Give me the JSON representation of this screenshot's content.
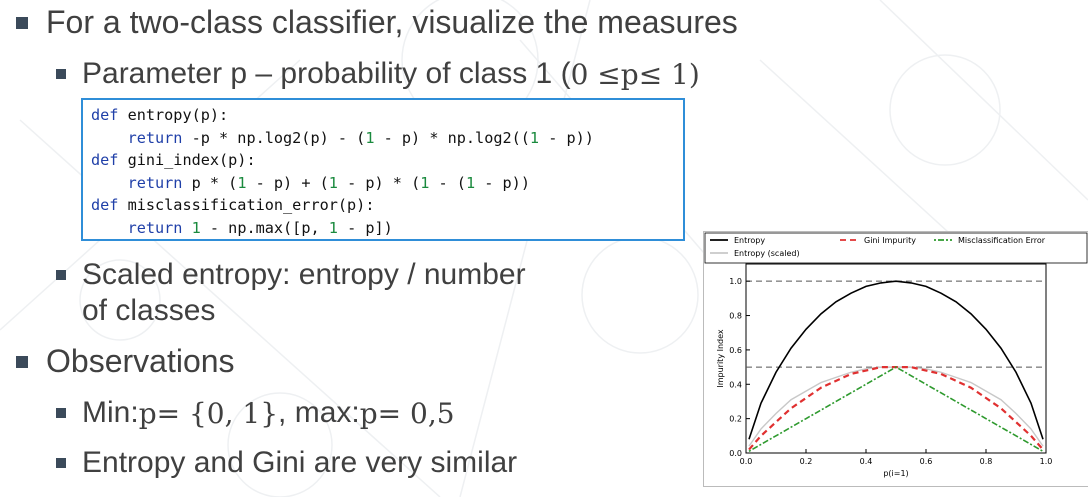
{
  "slide": {
    "bullet1": "For a two-class classifier, visualize the measures",
    "bullet1_sub1_prefix": "Parameter p – probability of class 1 (",
    "bullet1_sub1_math_a": "0 ≤ ",
    "bullet1_sub1_math_p": "p",
    "bullet1_sub1_math_b": " ≤ 1)",
    "bullet1_sub2_line1": "Scaled entropy: entropy / number",
    "bullet1_sub2_line2": "of classes",
    "bullet2": "Observations",
    "bullet2_sub1_min": "Min: ",
    "bullet2_sub1_p1": "p",
    "bullet2_sub1_eq1": " = {0, 1}",
    "bullet2_sub1_mid": ", max: ",
    "bullet2_sub1_p2": "p",
    "bullet2_sub1_eq2": " = 0,5",
    "bullet2_sub2": "Entropy and Gini are very similar"
  },
  "code": {
    "l1_kw": "def",
    "l1_rest": " entropy(p):",
    "l2_kw": "    return",
    "l2_a": " -p * np.log2(p) - (",
    "l2_n1": "1",
    "l2_b": " - p) * np.log2((",
    "l2_n2": "1",
    "l2_c": " - p))",
    "l3_kw": "def",
    "l3_rest": " gini_index(p):",
    "l4_kw": "    return",
    "l4_a": " p * (",
    "l4_n1": "1",
    "l4_b": " - p) + (",
    "l4_n2": "1",
    "l4_c": " - p) * (",
    "l4_n3": "1",
    "l4_d": " - (",
    "l4_n4": "1",
    "l4_e": " - p))",
    "l5_kw": "def",
    "l5_rest": " misclassification_error(p):",
    "l6_kw": "    return",
    "l6_sp": " ",
    "l6_n1": "1",
    "l6_a": " - np.max([p, ",
    "l6_n2": "1",
    "l6_b": " - p])"
  },
  "chart_data": {
    "type": "line",
    "xlabel": "p(i=1)",
    "ylabel": "Impurity Index",
    "xlim": [
      0.0,
      1.0
    ],
    "ylim": [
      0.0,
      1.1
    ],
    "xticks": [
      "0.0",
      "0.2",
      "0.4",
      "0.6",
      "0.8",
      "1.0"
    ],
    "yticks": [
      "0.0",
      "0.2",
      "0.4",
      "0.6",
      "0.8",
      "1.0"
    ],
    "legend_position": "top",
    "hlines": [
      0.5,
      1.0
    ],
    "x": [
      0.01,
      0.05,
      0.1,
      0.15,
      0.2,
      0.25,
      0.3,
      0.35,
      0.4,
      0.45,
      0.5,
      0.55,
      0.6,
      0.65,
      0.7,
      0.75,
      0.8,
      0.85,
      0.9,
      0.95,
      0.99
    ],
    "series": [
      {
        "name": "Entropy",
        "color": "#000000",
        "style": "solid",
        "values": [
          0.08,
          0.29,
          0.47,
          0.61,
          0.72,
          0.81,
          0.88,
          0.93,
          0.97,
          0.99,
          1.0,
          0.99,
          0.97,
          0.93,
          0.88,
          0.81,
          0.72,
          0.61,
          0.47,
          0.29,
          0.08
        ]
      },
      {
        "name": "Entropy (scaled)",
        "color": "#c8c8c8",
        "style": "solid",
        "values": [
          0.04,
          0.14,
          0.23,
          0.31,
          0.36,
          0.41,
          0.44,
          0.47,
          0.49,
          0.5,
          0.5,
          0.5,
          0.49,
          0.47,
          0.44,
          0.41,
          0.36,
          0.31,
          0.23,
          0.14,
          0.04
        ]
      },
      {
        "name": "Gini Impurity",
        "color": "#e03030",
        "style": "dashed",
        "values": [
          0.02,
          0.1,
          0.18,
          0.26,
          0.32,
          0.38,
          0.42,
          0.46,
          0.48,
          0.5,
          0.5,
          0.5,
          0.48,
          0.46,
          0.42,
          0.38,
          0.32,
          0.26,
          0.18,
          0.1,
          0.02
        ]
      },
      {
        "name": "Misclassification Error",
        "color": "#2e9a2e",
        "style": "dashdot",
        "values": [
          0.01,
          0.05,
          0.1,
          0.15,
          0.2,
          0.25,
          0.3,
          0.35,
          0.4,
          0.45,
          0.5,
          0.45,
          0.4,
          0.35,
          0.3,
          0.25,
          0.2,
          0.15,
          0.1,
          0.05,
          0.01
        ]
      }
    ]
  }
}
